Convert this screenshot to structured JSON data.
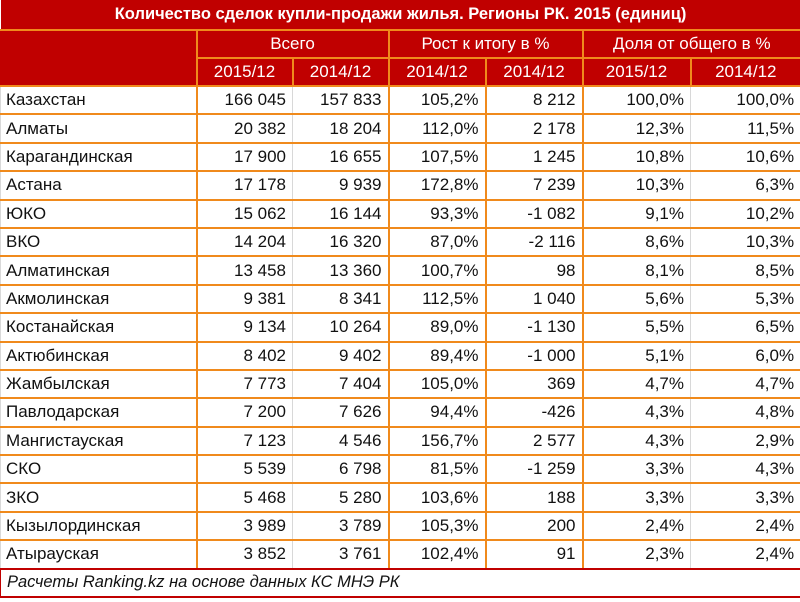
{
  "title": "Количество сделок купли-продажи жилья. Регионы РК. 2015 (единиц)",
  "groups": {
    "total": "Всего",
    "growth": "Рост к итогу в %",
    "share": "Доля от общего в %"
  },
  "subheaders": [
    "2015/12",
    "2014/12",
    "2014/12",
    "2014/12",
    "2015/12",
    "2014/12"
  ],
  "rows": [
    {
      "region": "Казахстан",
      "total_2015": "166 045",
      "total_2014": "157 833",
      "growth_pct": "105,2%",
      "growth_abs": "8 212",
      "share_2015": "100,0%",
      "share_2014": "100,0%"
    },
    {
      "region": "Алматы",
      "total_2015": "20 382",
      "total_2014": "18 204",
      "growth_pct": "112,0%",
      "growth_abs": "2 178",
      "share_2015": "12,3%",
      "share_2014": "11,5%"
    },
    {
      "region": "Карагандинская",
      "total_2015": "17 900",
      "total_2014": "16 655",
      "growth_pct": "107,5%",
      "growth_abs": "1 245",
      "share_2015": "10,8%",
      "share_2014": "10,6%"
    },
    {
      "region": "Астана",
      "total_2015": "17 178",
      "total_2014": "9 939",
      "growth_pct": "172,8%",
      "growth_abs": "7 239",
      "share_2015": "10,3%",
      "share_2014": "6,3%"
    },
    {
      "region": "ЮКО",
      "total_2015": "15 062",
      "total_2014": "16 144",
      "growth_pct": "93,3%",
      "growth_abs": "-1 082",
      "share_2015": "9,1%",
      "share_2014": "10,2%"
    },
    {
      "region": "ВКО",
      "total_2015": "14 204",
      "total_2014": "16 320",
      "growth_pct": "87,0%",
      "growth_abs": "-2 116",
      "share_2015": "8,6%",
      "share_2014": "10,3%"
    },
    {
      "region": "Алматинская",
      "total_2015": "13 458",
      "total_2014": "13 360",
      "growth_pct": "100,7%",
      "growth_abs": "98",
      "share_2015": "8,1%",
      "share_2014": "8,5%"
    },
    {
      "region": "Акмолинская",
      "total_2015": "9 381",
      "total_2014": "8 341",
      "growth_pct": "112,5%",
      "growth_abs": "1 040",
      "share_2015": "5,6%",
      "share_2014": "5,3%"
    },
    {
      "region": "Костанайская",
      "total_2015": "9 134",
      "total_2014": "10 264",
      "growth_pct": "89,0%",
      "growth_abs": "-1 130",
      "share_2015": "5,5%",
      "share_2014": "6,5%"
    },
    {
      "region": "Актюбинская",
      "total_2015": "8 402",
      "total_2014": "9 402",
      "growth_pct": "89,4%",
      "growth_abs": "-1 000",
      "share_2015": "5,1%",
      "share_2014": "6,0%"
    },
    {
      "region": "Жамбылская",
      "total_2015": "7 773",
      "total_2014": "7 404",
      "growth_pct": "105,0%",
      "growth_abs": "369",
      "share_2015": "4,7%",
      "share_2014": "4,7%"
    },
    {
      "region": "Павлодарская",
      "total_2015": "7 200",
      "total_2014": "7 626",
      "growth_pct": "94,4%",
      "growth_abs": "-426",
      "share_2015": "4,3%",
      "share_2014": "4,8%"
    },
    {
      "region": "Мангистауская",
      "total_2015": "7 123",
      "total_2014": "4 546",
      "growth_pct": "156,7%",
      "growth_abs": "2 577",
      "share_2015": "4,3%",
      "share_2014": "2,9%"
    },
    {
      "region": "СКО",
      "total_2015": "5 539",
      "total_2014": "6 798",
      "growth_pct": "81,5%",
      "growth_abs": "-1 259",
      "share_2015": "3,3%",
      "share_2014": "4,3%"
    },
    {
      "region": "ЗКО",
      "total_2015": "5 468",
      "total_2014": "5 280",
      "growth_pct": "103,6%",
      "growth_abs": "188",
      "share_2015": "3,3%",
      "share_2014": "3,3%"
    },
    {
      "region": "Кызылординская",
      "total_2015": "3 989",
      "total_2014": "3 789",
      "growth_pct": "105,3%",
      "growth_abs": "200",
      "share_2015": "2,4%",
      "share_2014": "2,4%"
    },
    {
      "region": "Атырауская",
      "total_2015": "3 852",
      "total_2014": "3 761",
      "growth_pct": "102,4%",
      "growth_abs": "91",
      "share_2015": "2,3%",
      "share_2014": "2,4%"
    }
  ],
  "footer": "Расчеты Ranking.kz на основе данных  КС МНЭ РК",
  "colors": {
    "header_bg": "#C00000",
    "header_text": "#FFFFFF",
    "grid_orange": "#F08A1C",
    "outer_border": "#C00000"
  }
}
